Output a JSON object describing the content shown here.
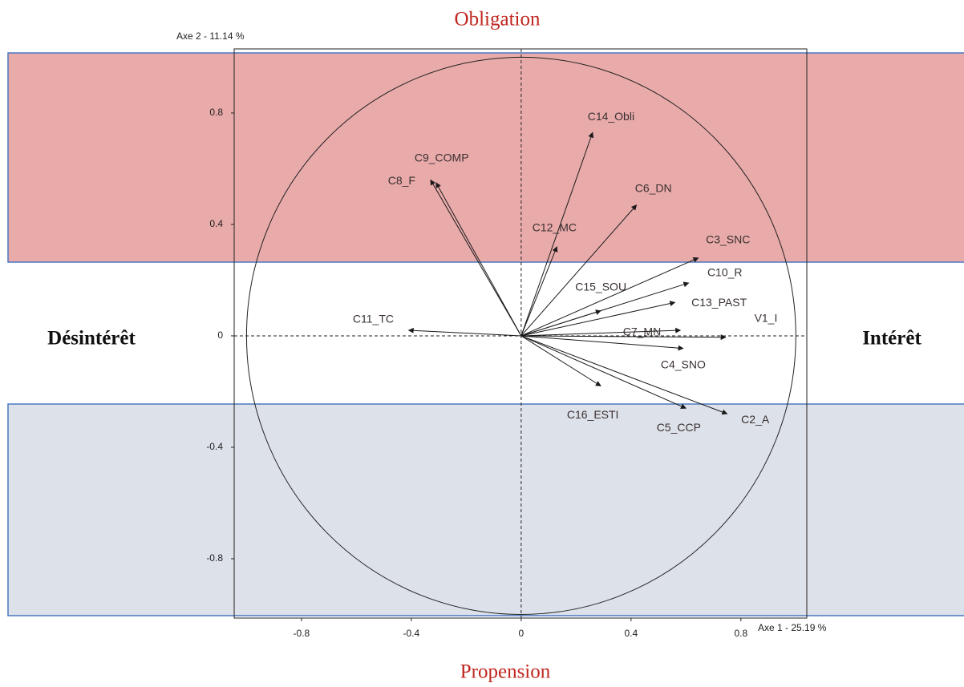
{
  "chart_data": {
    "type": "scatter",
    "xlabel": "Axe 1  -  25.19 %",
    "ylabel": "Axe 2  -  11.14 %",
    "annotations": {
      "top": "Obligation",
      "bottom": "Propension",
      "left": "Désintérêt",
      "right": "Intérêt"
    },
    "labels": [
      "C14_Obli",
      "C9_COMP",
      "C8_F",
      "C6_DN",
      "C12_MC",
      "C3_SNC",
      "C10_R",
      "C13_PAST",
      "C7_MN",
      "V1_I",
      "C4_SNO",
      "C11_TC",
      "C15_SOU",
      "C16_ESTI",
      "C5_CCP",
      "C2_A"
    ],
    "x": [
      0.26,
      -0.31,
      -0.33,
      0.42,
      0.13,
      0.645,
      0.61,
      0.56,
      0.58,
      0.745,
      0.59,
      -0.41,
      0.29,
      0.29,
      0.6,
      0.75
    ],
    "values": [
      0.73,
      0.55,
      0.56,
      0.47,
      0.32,
      0.28,
      0.19,
      0.12,
      0.02,
      -0.005,
      -0.045,
      0.02,
      0.09,
      -0.18,
      -0.26,
      -0.28
    ],
    "xlim": [
      -1.045,
      1.04
    ],
    "ylim": [
      -1.013,
      1.03
    ],
    "xticks": [
      -0.8,
      -0.4,
      0,
      0.4,
      0.8
    ],
    "yticks": [
      -0.8,
      -0.4,
      0,
      0.4,
      0.8
    ],
    "color": "#1a1a1a"
  }
}
